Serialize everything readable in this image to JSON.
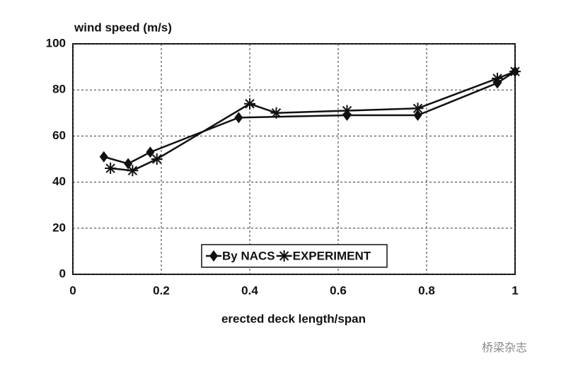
{
  "chart_data": {
    "type": "line",
    "y_label": "wind speed (m/s)",
    "x_label": "erected deck length/span",
    "xlim": [
      0,
      1
    ],
    "xticks": [
      0,
      0.2,
      0.4,
      0.6,
      0.8,
      1
    ],
    "ylim": [
      0,
      100
    ],
    "yticks": [
      0,
      20,
      40,
      60,
      80,
      100
    ],
    "grid": true,
    "legend": "bottom",
    "series": [
      {
        "name": "By NACS",
        "color": "#111111",
        "marker": "diamond",
        "x": [
          0.07,
          0.125,
          0.175,
          0.375,
          0.62,
          0.78,
          0.96,
          1.0
        ],
        "values": [
          51,
          48,
          53,
          68,
          69,
          69,
          83,
          88
        ]
      },
      {
        "name": "EXPERIMENT",
        "color": "#111111",
        "marker": "star",
        "x": [
          0.085,
          0.135,
          0.19,
          0.4,
          0.46,
          0.62,
          0.78,
          0.96,
          1.0
        ],
        "values": [
          46,
          45,
          50,
          74,
          70,
          71,
          72,
          85,
          88
        ]
      }
    ],
    "watermark": "桥梁杂志"
  }
}
